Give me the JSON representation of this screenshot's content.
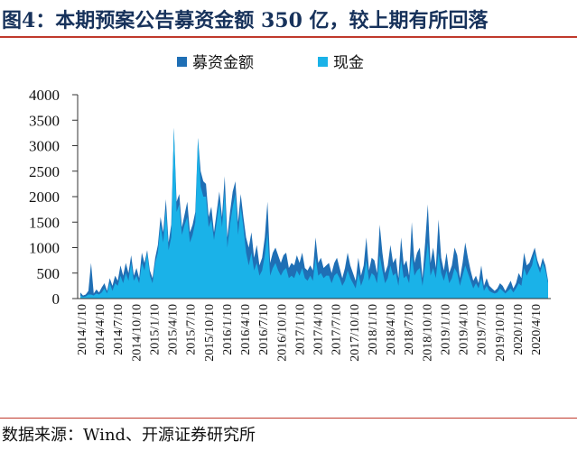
{
  "title": "图4：本期预案公告募资金额 350 亿，较上期有所回落",
  "source": "数据来源：Wind、开源证券研究所",
  "colors": {
    "fundraise": "#1f6fb5",
    "cash": "#1ab2e8",
    "title": "#17325b",
    "rule": "#c0392b"
  },
  "chart_data": {
    "type": "area",
    "title": "图4：本期预案公告募资金额 350 亿，较上期有所回落",
    "xlabel": "",
    "ylabel": "",
    "ylim": [
      0,
      4000
    ],
    "yticks": [
      "4000",
      "3500",
      "3000",
      "2500",
      "2000",
      "1500",
      "1000",
      "500",
      "0"
    ],
    "ytick_values": [
      4000,
      3500,
      3000,
      2500,
      2000,
      1500,
      1000,
      500,
      0
    ],
    "xtick_labels": [
      "2014/1/10",
      "2014/4/10",
      "2014/7/10",
      "2014/10/10",
      "2015/1/10",
      "2015/4/10",
      "2015/7/10",
      "2015/10/10",
      "2016/1/10",
      "2016/4/10",
      "2016/7/10",
      "2016/10/10",
      "2017/1/10",
      "2017/4/10",
      "2017/7/10",
      "2017/10/10",
      "2018/1/10",
      "2018/4/10",
      "2018/7/10",
      "2018/10/10",
      "2019/1/10",
      "2019/4/10",
      "2019/7/10",
      "2019/10/10",
      "2020/1/10",
      "2020/4/10"
    ],
    "legend": {
      "position": "top-center"
    },
    "grid": false,
    "series": [
      {
        "name": "募资金额",
        "color": "#1f6fb5",
        "values": [
          120,
          60,
          80,
          150,
          700,
          100,
          180,
          120,
          220,
          300,
          150,
          400,
          250,
          450,
          350,
          650,
          450,
          700,
          500,
          850,
          450,
          600,
          400,
          900,
          700,
          950,
          550,
          400,
          800,
          1050,
          1600,
          1300,
          1950,
          1100,
          1450,
          3350,
          1900,
          2050,
          1400,
          1650,
          1900,
          1300,
          1450,
          1700,
          3150,
          2500,
          2300,
          2250,
          1600,
          1800,
          1300,
          1700,
          2100,
          1600,
          2400,
          1200,
          1700,
          2100,
          2300,
          1500,
          2050,
          1600,
          1200,
          1000,
          1300,
          800,
          1050,
          650,
          800,
          1200,
          1900,
          700,
          900,
          1000,
          850,
          700,
          850,
          900,
          600,
          700,
          650,
          850,
          700,
          900,
          600,
          550,
          650,
          550,
          1200,
          700,
          800,
          600,
          650,
          700,
          500,
          700,
          800,
          600,
          400,
          600,
          900,
          650,
          500,
          350,
          800,
          450,
          650,
          1200,
          550,
          800,
          750,
          500,
          1450,
          900,
          500,
          650,
          1050,
          700,
          800,
          400,
          1200,
          650,
          750,
          450,
          1500,
          700,
          900,
          1000,
          400,
          1100,
          1850,
          700,
          1000,
          600,
          1550,
          800,
          550,
          900,
          500,
          650,
          1000,
          850,
          400,
          700,
          1100,
          800,
          550,
          350,
          450,
          300,
          650,
          250,
          400,
          250,
          200,
          150,
          200,
          300,
          250,
          150,
          250,
          350,
          200,
          300,
          500,
          400,
          900,
          650,
          700,
          850,
          1000,
          750,
          600,
          800,
          650,
          350
        ]
      },
      {
        "name": "现金",
        "color": "#1ab2e8",
        "values": [
          60,
          30,
          40,
          80,
          80,
          60,
          100,
          80,
          120,
          200,
          100,
          300,
          150,
          300,
          250,
          450,
          300,
          500,
          350,
          700,
          350,
          450,
          300,
          700,
          550,
          900,
          450,
          300,
          700,
          900,
          1450,
          1100,
          1750,
          950,
          1200,
          3350,
          1700,
          1850,
          1250,
          1450,
          1600,
          1100,
          1250,
          1500,
          3150,
          2200,
          2000,
          2000,
          1400,
          1550,
          1150,
          1500,
          1900,
          1400,
          2100,
          1000,
          1450,
          1800,
          2050,
          1250,
          1800,
          1400,
          900,
          650,
          900,
          550,
          700,
          450,
          550,
          850,
          1300,
          450,
          600,
          700,
          550,
          450,
          550,
          600,
          400,
          450,
          400,
          550,
          450,
          600,
          400,
          350,
          450,
          350,
          800,
          450,
          500,
          400,
          450,
          450,
          300,
          450,
          500,
          400,
          250,
          350,
          550,
          400,
          300,
          200,
          500,
          250,
          400,
          750,
          350,
          500,
          450,
          300,
          850,
          550,
          300,
          400,
          650,
          450,
          500,
          250,
          750,
          400,
          450,
          300,
          850,
          450,
          550,
          600,
          250,
          650,
          1100,
          450,
          600,
          400,
          900,
          500,
          350,
          550,
          300,
          400,
          600,
          500,
          250,
          450,
          650,
          500,
          350,
          200,
          300,
          200,
          400,
          150,
          250,
          150,
          120,
          100,
          120,
          200,
          150,
          100,
          150,
          200,
          120,
          200,
          300,
          250,
          600,
          450,
          550,
          650,
          900,
          650,
          500,
          700,
          550,
          300
        ]
      }
    ]
  }
}
